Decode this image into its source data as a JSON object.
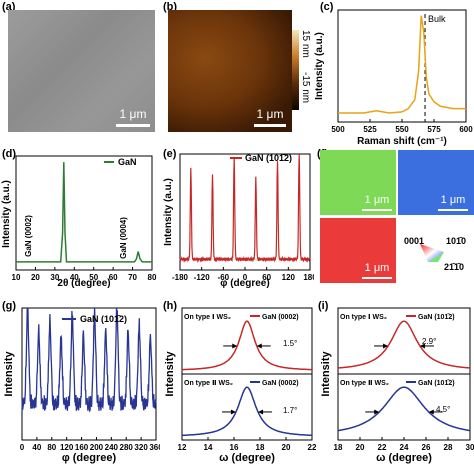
{
  "panels": {
    "a": {
      "label": "(a)",
      "scale": "1 μm"
    },
    "b": {
      "label": "(b)",
      "scale": "1 μm",
      "colorbar_top": "15 nm",
      "colorbar_bottom": "-15 nm"
    },
    "c": {
      "label": "(c)"
    },
    "d": {
      "label": "(d)"
    },
    "e": {
      "label": "(e)"
    },
    "f": {
      "label": "(f)",
      "scale": "1 μm",
      "legend": {
        "top": "0001",
        "right": "101̄0",
        "bottom": "21̄1̄0"
      }
    },
    "g": {
      "label": "(g)"
    },
    "h": {
      "label": "(h)"
    },
    "i": {
      "label": "(i)"
    }
  },
  "colors": {
    "raman": "#e8a317",
    "xrd": "#2e7d32",
    "phi_e": "#c62828",
    "phi_g": "#283593",
    "rock_top": "#c62828",
    "rock_bottom": "#283593",
    "ebsd_green": "#7ed957",
    "ebsd_blue": "#3b6fe0",
    "ebsd_red": "#ea3a3a"
  },
  "chart_data": [
    {
      "id": "c",
      "type": "line",
      "xlabel": "Raman shift (cm⁻¹)",
      "ylabel": "Intensity (a.u.)",
      "xlim": [
        500,
        600
      ],
      "xticks": [
        500,
        525,
        550,
        575,
        600
      ],
      "annotation": "Bulk",
      "annotation_x": 568,
      "series": [
        {
          "x": [
            500,
            520,
            530,
            535,
            540,
            550,
            555,
            560,
            563,
            565,
            567,
            569,
            571,
            575,
            580,
            590,
            600
          ],
          "values": [
            0.08,
            0.08,
            0.1,
            0.09,
            0.08,
            0.09,
            0.12,
            0.2,
            0.45,
            0.95,
            0.8,
            0.4,
            0.25,
            0.18,
            0.14,
            0.12,
            0.12
          ]
        }
      ]
    },
    {
      "id": "d",
      "type": "line",
      "xlabel": "2θ (degree)",
      "ylabel": "Intensity (a.u.)",
      "xlim": [
        10,
        80
      ],
      "xticks": [
        10,
        20,
        30,
        40,
        50,
        60,
        70,
        80
      ],
      "legend": "GaN",
      "annotations": [
        "GaN (0002)",
        "GaN (0004)"
      ],
      "series": [
        {
          "name": "GaN",
          "x": [
            10,
            33,
            34,
            34.6,
            35.2,
            36,
            40,
            71,
            72,
            72.9,
            73.8,
            75,
            80
          ],
          "values": [
            0.02,
            0.02,
            0.3,
            0.98,
            0.3,
            0.02,
            0.02,
            0.02,
            0.05,
            0.12,
            0.05,
            0.02,
            0.02
          ]
        }
      ]
    },
    {
      "id": "e",
      "type": "line",
      "xlabel": "φ (degree)",
      "ylabel": "Intensity (a.u.)",
      "xlim": [
        -180,
        180
      ],
      "xticks": [
        -180,
        -120,
        -60,
        0,
        60,
        120,
        180
      ],
      "legend": "GaN (101̄2)",
      "peaks": [
        -150,
        -90,
        -30,
        30,
        90,
        150
      ],
      "peak_heights": [
        0.78,
        0.72,
        0.88,
        0.7,
        0.85,
        0.95
      ]
    },
    {
      "id": "g",
      "type": "line",
      "xlabel": "φ (degree)",
      "ylabel": "Intensity",
      "xlim": [
        0,
        360
      ],
      "xticks": [
        0,
        40,
        80,
        120,
        160,
        200,
        240,
        280,
        320,
        360
      ],
      "legend": "GaN (101̄2)",
      "peaks": [
        15,
        45,
        75,
        105,
        135,
        165,
        195,
        225,
        255,
        285,
        315,
        345
      ],
      "peak_heights": [
        0.72,
        0.55,
        0.62,
        0.5,
        0.68,
        0.52,
        0.7,
        0.55,
        0.74,
        0.54,
        0.6,
        0.5
      ]
    },
    {
      "id": "h",
      "type": "line",
      "xlabel": "ω (degree)",
      "ylabel": "Intensity",
      "xlim": [
        12,
        22
      ],
      "xticks": [
        12,
        14,
        16,
        18,
        20,
        22
      ],
      "subplots": [
        {
          "label": "On type Ⅰ WS₂",
          "legend": "GaN (0002)",
          "fwhm": "1.5°",
          "center": 17,
          "width": 1.5
        },
        {
          "label": "On type Ⅱ WS₂",
          "legend": "GaN (0002)",
          "fwhm": "1.7°",
          "center": 17,
          "width": 1.7
        }
      ]
    },
    {
      "id": "i",
      "type": "line",
      "xlabel": "ω (degree)",
      "ylabel": "Intensity",
      "xlim": [
        18,
        30
      ],
      "xticks": [
        18,
        20,
        22,
        24,
        26,
        28,
        30
      ],
      "subplots": [
        {
          "label": "On type Ⅰ WS₂",
          "legend": "GaN (101̄2)",
          "fwhm": "2.9°",
          "center": 24,
          "width": 2.9
        },
        {
          "label": "On type Ⅱ WS₂",
          "legend": "GaN (101̄2)",
          "fwhm": "4.5°",
          "center": 24,
          "width": 4.5
        }
      ]
    }
  ]
}
